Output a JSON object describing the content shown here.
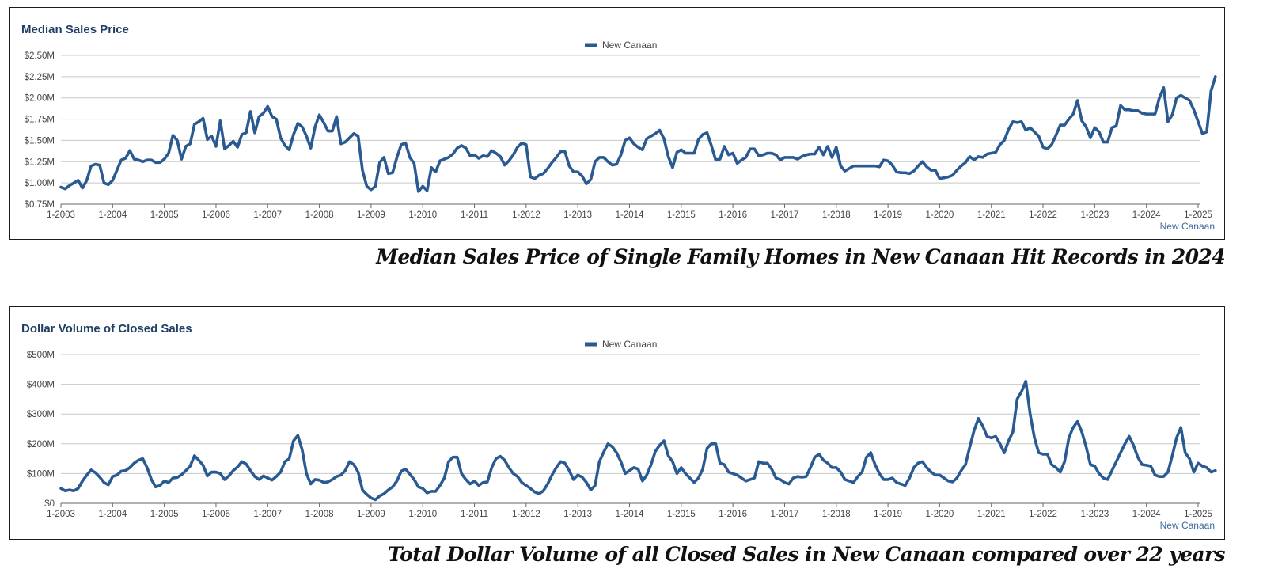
{
  "colors": {
    "line": "#2a5a92",
    "title": "#1f3f63",
    "grid": "#c8c8c8",
    "text": "#444444"
  },
  "captions": {
    "median": "Median Sales Price of Single Family Homes in New Canaan Hit Records in 2024",
    "volume": "Total Dollar Volume of all Closed Sales in New Canaan compared over 22 years"
  },
  "chart_data": [
    {
      "type": "line",
      "title": "Median Sales Price",
      "legend": "New Canaan",
      "source_label": "New Canaan",
      "ylim": [
        0.75,
        2.5
      ],
      "y_ticks": [
        0.75,
        1.0,
        1.25,
        1.5,
        1.75,
        2.0,
        2.25,
        2.5
      ],
      "y_tick_labels": [
        "$0.75M",
        "$1.00M",
        "$1.25M",
        "$1.50M",
        "$1.75M",
        "$2.00M",
        "$2.25M",
        "$2.50M"
      ],
      "x_labels": [
        "1-2003",
        "1-2004",
        "1-2005",
        "1-2006",
        "1-2007",
        "1-2008",
        "1-2009",
        "1-2010",
        "1-2011",
        "1-2012",
        "1-2013",
        "1-2014",
        "1-2015",
        "1-2016",
        "1-2017",
        "1-2018",
        "1-2019",
        "1-2020",
        "1-2021",
        "1-2022",
        "1-2023",
        "1-2024",
        "1-2025"
      ],
      "x_start": "1-2003",
      "x_step": "monthly",
      "series": [
        {
          "name": "New Canaan",
          "values": [
            0.95,
            0.93,
            0.97,
            1.0,
            1.03,
            0.94,
            1.03,
            1.2,
            1.22,
            1.21,
            1.0,
            0.98,
            1.03,
            1.15,
            1.27,
            1.29,
            1.38,
            1.28,
            1.27,
            1.25,
            1.27,
            1.27,
            1.24,
            1.24,
            1.28,
            1.35,
            1.56,
            1.5,
            1.28,
            1.43,
            1.46,
            1.69,
            1.72,
            1.76,
            1.51,
            1.55,
            1.43,
            1.73,
            1.4,
            1.44,
            1.49,
            1.42,
            1.57,
            1.59,
            1.84,
            1.59,
            1.78,
            1.82,
            1.9,
            1.78,
            1.75,
            1.53,
            1.44,
            1.39,
            1.57,
            1.7,
            1.66,
            1.55,
            1.41,
            1.66,
            1.8,
            1.71,
            1.61,
            1.61,
            1.78,
            1.46,
            1.48,
            1.53,
            1.58,
            1.55,
            1.15,
            0.96,
            0.92,
            0.96,
            1.24,
            1.3,
            1.11,
            1.12,
            1.3,
            1.45,
            1.47,
            1.3,
            1.23,
            0.9,
            0.96,
            0.91,
            1.18,
            1.13,
            1.26,
            1.28,
            1.3,
            1.34,
            1.41,
            1.44,
            1.41,
            1.32,
            1.33,
            1.29,
            1.32,
            1.31,
            1.38,
            1.35,
            1.31,
            1.21,
            1.26,
            1.33,
            1.42,
            1.47,
            1.45,
            1.07,
            1.05,
            1.09,
            1.11,
            1.17,
            1.24,
            1.3,
            1.37,
            1.37,
            1.2,
            1.13,
            1.13,
            1.08,
            0.99,
            1.04,
            1.25,
            1.3,
            1.3,
            1.25,
            1.21,
            1.22,
            1.33,
            1.5,
            1.53,
            1.46,
            1.42,
            1.39,
            1.52,
            1.55,
            1.58,
            1.62,
            1.52,
            1.31,
            1.18,
            1.36,
            1.39,
            1.35,
            1.35,
            1.35,
            1.51,
            1.57,
            1.59,
            1.44,
            1.27,
            1.28,
            1.43,
            1.33,
            1.35,
            1.23,
            1.27,
            1.3,
            1.4,
            1.4,
            1.32,
            1.33,
            1.35,
            1.35,
            1.33,
            1.27,
            1.3,
            1.3,
            1.3,
            1.28,
            1.31,
            1.33,
            1.34,
            1.34,
            1.42,
            1.33,
            1.43,
            1.3,
            1.42,
            1.2,
            1.14,
            1.17,
            1.2,
            1.2,
            1.2,
            1.2,
            1.2,
            1.2,
            1.19,
            1.27,
            1.26,
            1.21,
            1.13,
            1.12,
            1.12,
            1.11,
            1.14,
            1.2,
            1.25,
            1.19,
            1.15,
            1.15,
            1.05,
            1.06,
            1.07,
            1.09,
            1.15,
            1.2,
            1.24,
            1.31,
            1.27,
            1.31,
            1.3,
            1.34,
            1.35,
            1.36,
            1.45,
            1.5,
            1.63,
            1.72,
            1.71,
            1.72,
            1.62,
            1.65,
            1.6,
            1.55,
            1.42,
            1.4,
            1.45,
            1.56,
            1.68,
            1.68,
            1.75,
            1.81,
            1.97,
            1.73,
            1.66,
            1.53,
            1.65,
            1.6,
            1.48,
            1.48,
            1.65,
            1.67,
            1.91,
            1.86,
            1.86,
            1.85,
            1.85,
            1.82,
            1.81,
            1.81,
            1.81,
            2.0,
            2.12,
            1.72,
            1.8,
            2.0,
            2.03,
            2.0,
            1.97,
            1.86,
            1.72,
            1.58,
            1.6,
            2.08,
            2.25
          ]
        }
      ]
    },
    {
      "type": "line",
      "title": "Dollar Volume of Closed Sales",
      "legend": "New Canaan",
      "source_label": "New Canaan",
      "ylim": [
        0,
        500
      ],
      "y_ticks": [
        0,
        100,
        200,
        300,
        400,
        500
      ],
      "y_tick_labels": [
        "$0",
        "$100M",
        "$200M",
        "$300M",
        "$400M",
        "$500M"
      ],
      "x_labels": [
        "1-2003",
        "1-2004",
        "1-2005",
        "1-2006",
        "1-2007",
        "1-2008",
        "1-2009",
        "1-2010",
        "1-2011",
        "1-2012",
        "1-2013",
        "1-2014",
        "1-2015",
        "1-2016",
        "1-2017",
        "1-2018",
        "1-2019",
        "1-2020",
        "1-2021",
        "1-2022",
        "1-2023",
        "1-2024",
        "1-2025"
      ],
      "x_start": "1-2003",
      "x_step": "monthly",
      "series": [
        {
          "name": "New Canaan",
          "values": [
            50,
            42,
            45,
            42,
            50,
            75,
            95,
            112,
            103,
            88,
            70,
            62,
            90,
            95,
            108,
            110,
            120,
            135,
            145,
            150,
            120,
            80,
            55,
            60,
            75,
            70,
            85,
            87,
            96,
            110,
            125,
            160,
            145,
            128,
            92,
            105,
            105,
            100,
            80,
            92,
            110,
            122,
            140,
            132,
            110,
            90,
            80,
            92,
            85,
            78,
            90,
            105,
            140,
            150,
            210,
            228,
            180,
            100,
            65,
            80,
            78,
            70,
            72,
            80,
            90,
            95,
            110,
            140,
            130,
            105,
            45,
            30,
            18,
            12,
            25,
            32,
            45,
            55,
            75,
            108,
            115,
            98,
            80,
            55,
            50,
            35,
            40,
            40,
            60,
            85,
            140,
            155,
            155,
            100,
            80,
            65,
            75,
            60,
            70,
            72,
            120,
            150,
            158,
            145,
            120,
            100,
            90,
            70,
            60,
            50,
            38,
            32,
            42,
            65,
            95,
            120,
            140,
            135,
            110,
            80,
            95,
            88,
            70,
            45,
            60,
            140,
            172,
            200,
            190,
            170,
            140,
            100,
            110,
            120,
            115,
            75,
            95,
            130,
            175,
            195,
            210,
            160,
            140,
            100,
            120,
            100,
            85,
            70,
            85,
            115,
            185,
            200,
            200,
            135,
            130,
            105,
            100,
            95,
            85,
            75,
            80,
            85,
            140,
            135,
            135,
            115,
            85,
            80,
            70,
            65,
            85,
            90,
            88,
            90,
            120,
            155,
            165,
            145,
            135,
            120,
            120,
            105,
            80,
            75,
            70,
            90,
            105,
            155,
            170,
            130,
            100,
            80,
            80,
            85,
            70,
            65,
            60,
            85,
            120,
            135,
            140,
            120,
            105,
            95,
            95,
            85,
            75,
            72,
            85,
            110,
            130,
            190,
            245,
            285,
            260,
            225,
            220,
            225,
            200,
            170,
            210,
            240,
            350,
            375,
            410,
            300,
            220,
            170,
            165,
            165,
            130,
            120,
            105,
            140,
            220,
            255,
            275,
            240,
            190,
            130,
            125,
            100,
            85,
            80,
            110,
            140,
            170,
            200,
            225,
            195,
            155,
            130,
            128,
            125,
            95,
            90,
            90,
            105,
            160,
            220,
            255,
            170,
            150,
            105,
            135,
            125,
            120,
            105,
            110
          ]
        }
      ]
    }
  ]
}
